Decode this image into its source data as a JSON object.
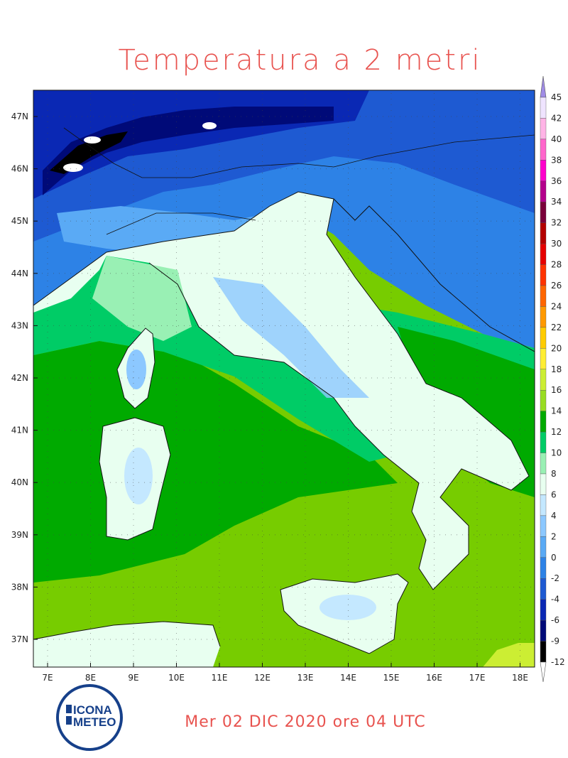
{
  "title": "Temperatura a 2 metri",
  "footer": "Mer 02 DIC 2020 ore 04 UTC",
  "logo": {
    "line1": "ICONA",
    "line2": "METEO"
  },
  "lat_labels": [
    "47N",
    "46N",
    "45N",
    "44N",
    "43N",
    "42N",
    "41N",
    "40N",
    "39N",
    "38N",
    "37N"
  ],
  "lon_labels": [
    "7E",
    "8E",
    "9E",
    "10E",
    "11E",
    "12E",
    "13E",
    "14E",
    "15E",
    "16E",
    "17E",
    "18E"
  ],
  "colorbar": {
    "labels": [
      "45",
      "42",
      "40",
      "38",
      "36",
      "34",
      "32",
      "30",
      "28",
      "26",
      "24",
      "22",
      "20",
      "18",
      "16",
      "14",
      "12",
      "10",
      "8",
      "6",
      "4",
      "2",
      "0",
      "-2",
      "-4",
      "-6",
      "-9",
      "-12"
    ],
    "colors": [
      "#efe4ff",
      "#ffb4e6",
      "#ff66cc",
      "#ff00cc",
      "#b4008c",
      "#7a003a",
      "#b40000",
      "#e60000",
      "#ff3300",
      "#ff6600",
      "#ff9900",
      "#ffcc00",
      "#ffee33",
      "#ccee33",
      "#99dd22",
      "#00aa00",
      "#00cc66",
      "#99f0b4",
      "#e8fff0",
      "#c4e8ff",
      "#8cc8ff",
      "#5aaaf5",
      "#2d82e6",
      "#1e5ad2",
      "#0a28b4",
      "#000a78",
      "#000000"
    ],
    "top_color": "#a08ce6"
  }
}
